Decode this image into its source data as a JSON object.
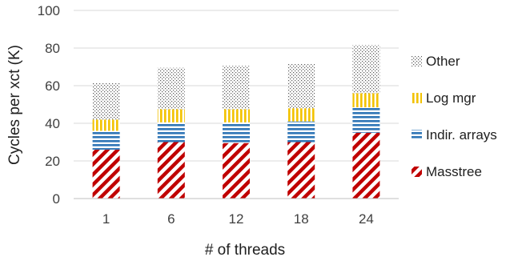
{
  "chart_data": {
    "type": "bar",
    "stacked": true,
    "title": "",
    "xlabel": "# of threads",
    "ylabel": "Cycles per xct (K)",
    "categories": [
      "1",
      "6",
      "12",
      "18",
      "24"
    ],
    "ylim": [
      0,
      100
    ],
    "yticks": [
      0,
      20,
      40,
      60,
      80,
      100
    ],
    "grid": true,
    "legend_position": "right",
    "series": [
      {
        "name": "Masstree",
        "values": [
          26,
          30,
          29.5,
          30,
          35
        ],
        "color": "#c00000",
        "pattern": "diagonal-stripes"
      },
      {
        "name": "Indir. arrays",
        "values": [
          10,
          10.5,
          11,
          11,
          13.5
        ],
        "color": "#2e75b6",
        "pattern": "horizontal-stripes"
      },
      {
        "name": "Log mgr",
        "values": [
          6,
          7,
          7,
          7,
          7.5
        ],
        "color": "#f2c200",
        "pattern": "vertical-stripes"
      },
      {
        "name": "Other",
        "values": [
          19.5,
          22,
          23,
          23.5,
          25.5
        ],
        "color": "#595959",
        "pattern": "dots"
      }
    ]
  }
}
